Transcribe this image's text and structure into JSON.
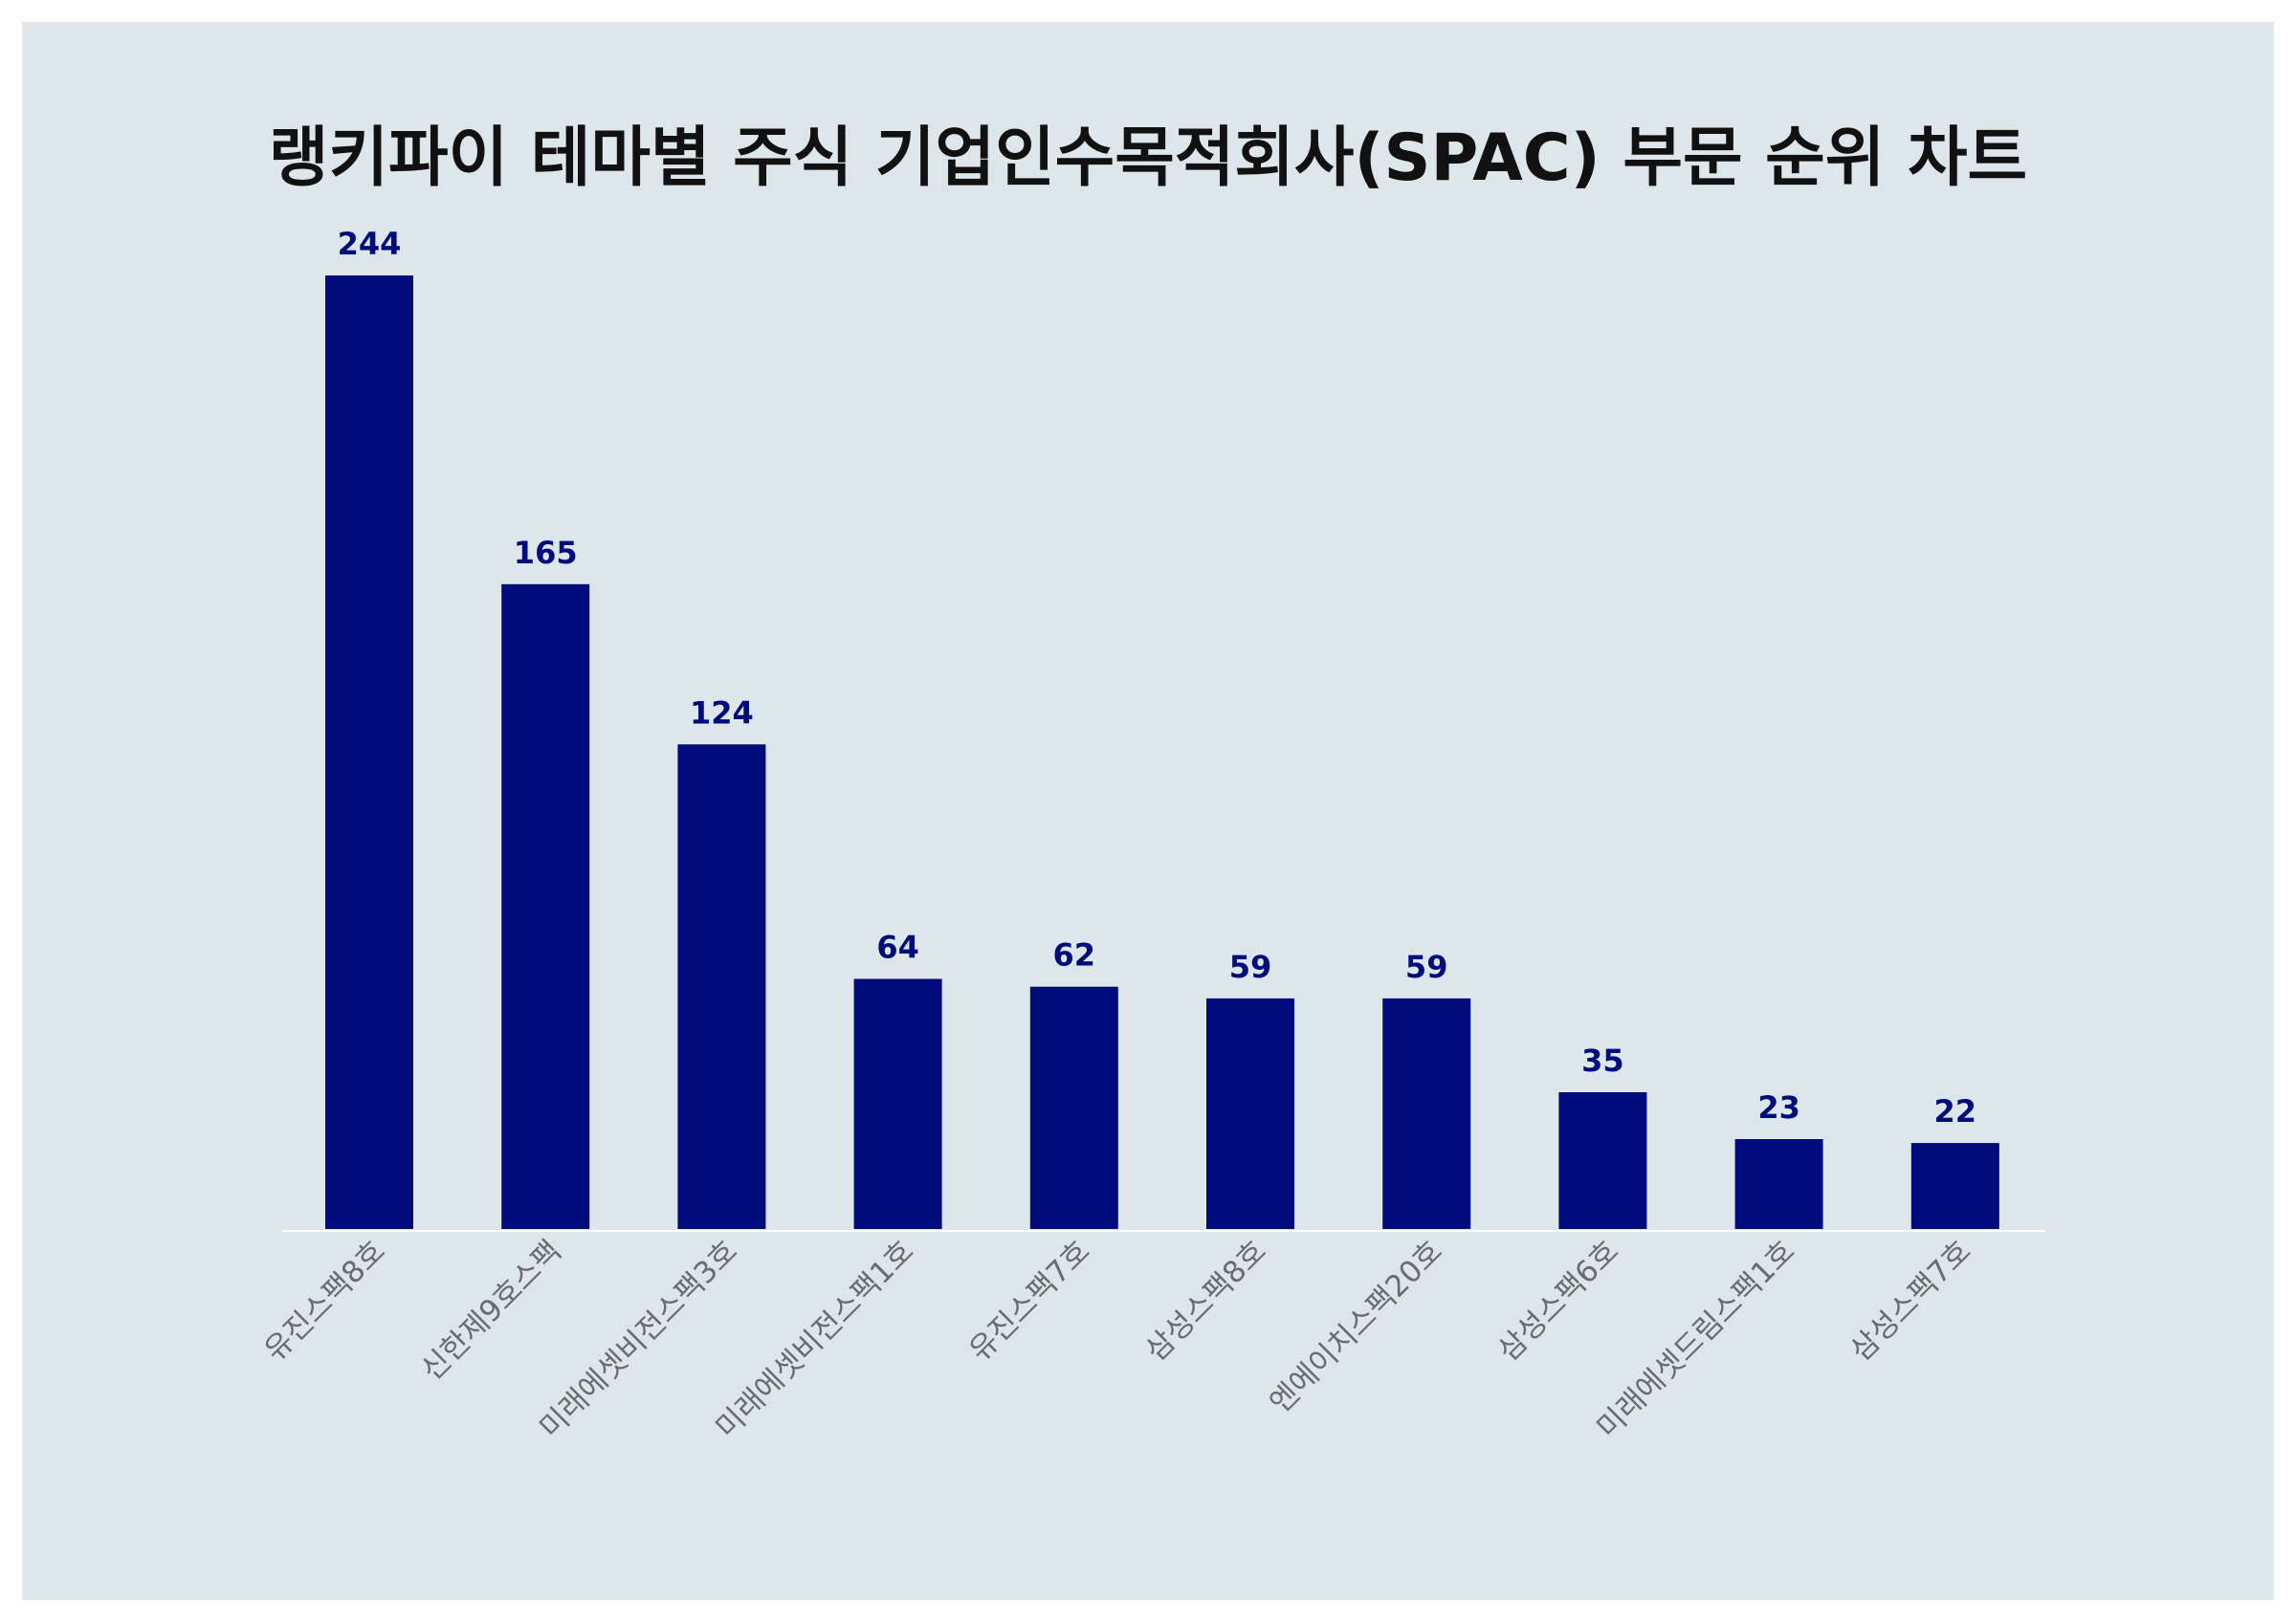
{
  "chart_data": {
    "type": "bar",
    "title": "랭키파이 테마별 주식 기업인수목적회사(SPAC) 부문 순위 차트",
    "xlabel": "",
    "ylabel": "",
    "categories": [
      "유진스팩8호",
      "신한제9호스팩",
      "미래에셋비전스팩3호",
      "미래에셋비전스팩1호",
      "유진스팩7호",
      "삼성스팩8호",
      "엔에이치스팩20호",
      "삼성스팩6호",
      "미래에셋드림스팩1호",
      "삼성스팩7호"
    ],
    "values": [
      244,
      165,
      124,
      64,
      62,
      59,
      59,
      35,
      23,
      22
    ],
    "ylim": [
      0,
      244
    ],
    "grid": false,
    "legend": "none"
  },
  "colors": {
    "background": "#dce6eb",
    "bar": "#000c7b",
    "value_label": "#000c7b",
    "axis_line": "#ffffff",
    "tick_label": "#6b6b6b",
    "title": "#111111"
  }
}
